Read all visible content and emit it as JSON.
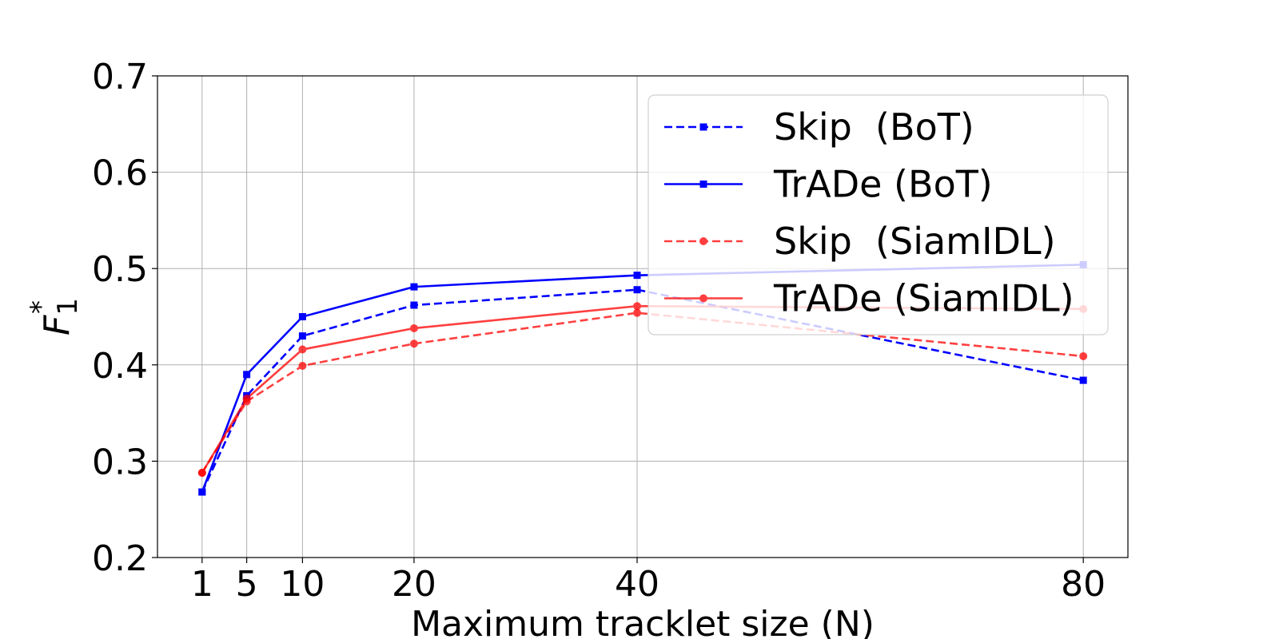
{
  "chart_data": {
    "type": "line",
    "title": "",
    "xlabel": "Maximum tracklet size (N)",
    "ylabel": "F",
    "ylabel_sub": "1",
    "ylabel_sup": "*",
    "x": [
      1,
      5,
      10,
      20,
      40,
      80
    ],
    "x_ticks": [
      "1",
      "5",
      "10",
      "20",
      "40",
      "80"
    ],
    "y_ticks": [
      "0.2",
      "0.3",
      "0.4",
      "0.5",
      "0.6",
      "0.7"
    ],
    "xlim": [
      -3,
      84
    ],
    "ylim": [
      0.2,
      0.7
    ],
    "grid": true,
    "legend_position": "upper right",
    "series": [
      {
        "name": "Skip  (BoT)",
        "color": "#0000ff",
        "dash": true,
        "marker": "square",
        "values": [
          0.268,
          0.368,
          0.43,
          0.462,
          0.478,
          0.384
        ]
      },
      {
        "name": "TrADe (BoT)",
        "color": "#0000ff",
        "dash": false,
        "marker": "square",
        "values": [
          0.268,
          0.39,
          0.45,
          0.481,
          0.493,
          0.504
        ]
      },
      {
        "name": "Skip  (SiamIDL)",
        "color": "#ff0000",
        "opacity": 0.75,
        "dash": true,
        "marker": "circle",
        "values": [
          0.288,
          0.362,
          0.399,
          0.422,
          0.454,
          0.409
        ]
      },
      {
        "name": "TrADe (SiamIDL)",
        "color": "#ff0000",
        "opacity": 0.75,
        "dash": false,
        "marker": "circle",
        "values": [
          0.288,
          0.365,
          0.416,
          0.438,
          0.461,
          0.458
        ]
      }
    ]
  }
}
